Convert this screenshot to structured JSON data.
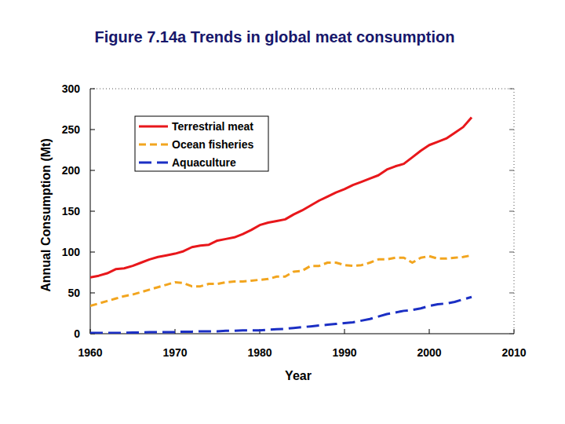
{
  "chart_data": {
    "type": "line",
    "title": "Figure 7.14a Trends in global meat consumption",
    "x_label": "Year",
    "y_label": "Annual Consumption (Mt)",
    "x": [
      1960,
      1961,
      1962,
      1963,
      1964,
      1965,
      1966,
      1967,
      1968,
      1969,
      1970,
      1971,
      1972,
      1973,
      1974,
      1975,
      1976,
      1977,
      1978,
      1979,
      1980,
      1981,
      1982,
      1983,
      1984,
      1985,
      1986,
      1987,
      1988,
      1989,
      1990,
      1991,
      1992,
      1993,
      1994,
      1995,
      1996,
      1997,
      1998,
      1999,
      2000,
      2001,
      2002,
      2003,
      2004,
      2005
    ],
    "series": [
      {
        "name": "Terrestrial meat",
        "color": "#e8171b",
        "line_style": "solid",
        "values": [
          69,
          71,
          74,
          79,
          80,
          83,
          87,
          91,
          94,
          96,
          98,
          101,
          106,
          108,
          109,
          114,
          116,
          118,
          122,
          127,
          133,
          136,
          138,
          140,
          146,
          151,
          157,
          163,
          168,
          173,
          177,
          182,
          186,
          190,
          194,
          201,
          205,
          208,
          216,
          224,
          231,
          235,
          239,
          246,
          253,
          265
        ]
      },
      {
        "name": "Ocean fisheries",
        "color": "#f2a51f",
        "line_style": "dashed",
        "values": [
          34,
          37,
          40,
          43,
          46,
          48,
          51,
          54,
          57,
          60,
          63,
          62,
          58,
          58,
          61,
          61,
          63,
          64,
          64,
          65,
          66,
          67,
          70,
          70,
          76,
          77,
          83,
          83,
          87,
          87,
          84,
          83,
          84,
          87,
          91,
          91,
          93,
          93,
          87,
          93,
          95,
          92,
          92,
          93,
          94,
          96
        ]
      },
      {
        "name": "Aquaculture",
        "color": "#1b2fc4",
        "line_style": "long-dashed",
        "values": [
          1,
          1,
          1,
          1,
          1,
          1.5,
          1.5,
          2,
          2,
          2,
          2,
          2.5,
          2.5,
          3,
          3,
          3,
          3.5,
          3.5,
          4,
          4,
          4,
          5,
          5.5,
          6,
          7,
          8,
          9,
          10,
          11,
          12,
          13,
          14,
          16,
          18,
          21,
          24,
          26,
          28,
          29,
          31,
          34,
          36,
          37,
          39,
          42,
          45
        ]
      }
    ],
    "xlim": [
      1960,
      2010
    ],
    "ylim": [
      0,
      300
    ],
    "xticks": [
      1960,
      1970,
      1980,
      1990,
      2000,
      2010
    ],
    "yticks": [
      0,
      50,
      100,
      150,
      200,
      250,
      300
    ],
    "grid": false,
    "legend": "upper left"
  }
}
